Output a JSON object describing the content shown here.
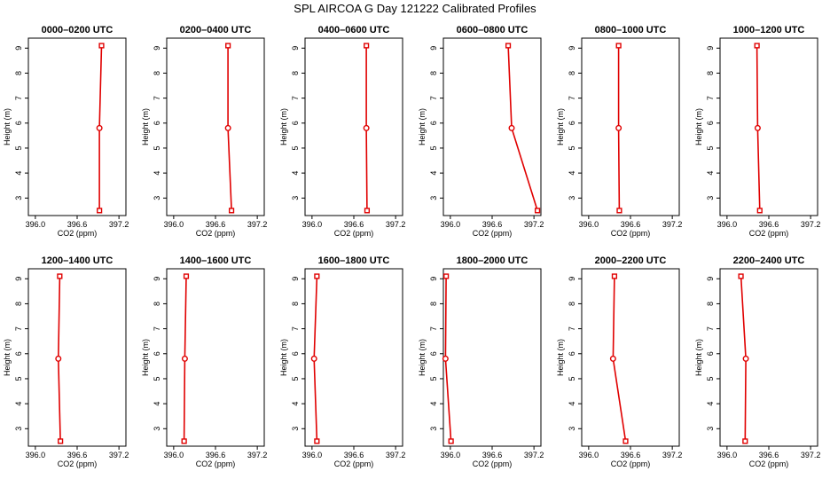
{
  "figure": {
    "title": "SPL AIRCOA G  Day 121222  Calibrated Profiles",
    "line_color": "#e00000",
    "marker_fill": "#ffffff"
  },
  "chart_data": [
    {
      "type": "line",
      "title": "0000–0200 UTC",
      "xlabel": "CO2 (ppm)",
      "ylabel": "Height (m)",
      "xlim": [
        395.9,
        397.3
      ],
      "ylim": [
        2.3,
        9.4
      ],
      "xticks": [
        "396.0",
        "396.6",
        "397.2"
      ],
      "yticks": [
        "3",
        "4",
        "5",
        "6",
        "7",
        "8",
        "9"
      ],
      "grid": false,
      "series": [
        {
          "x": [
            396.95,
            396.92,
            396.92
          ],
          "y": [
            9.1,
            5.8,
            2.5
          ]
        }
      ]
    },
    {
      "type": "line",
      "title": "0200–0400 UTC",
      "xlabel": "CO2 (ppm)",
      "ylabel": "Height (m)",
      "xlim": [
        395.9,
        397.3
      ],
      "ylim": [
        2.3,
        9.4
      ],
      "xticks": [
        "396.0",
        "396.6",
        "397.2"
      ],
      "yticks": [
        "3",
        "4",
        "5",
        "6",
        "7",
        "8",
        "9"
      ],
      "grid": false,
      "series": [
        {
          "x": [
            396.78,
            396.78,
            396.83
          ],
          "y": [
            9.1,
            5.8,
            2.5
          ]
        }
      ]
    },
    {
      "type": "line",
      "title": "0400–0600 UTC",
      "xlabel": "CO2 (ppm)",
      "ylabel": "Height (m)",
      "xlim": [
        395.9,
        397.3
      ],
      "ylim": [
        2.3,
        9.4
      ],
      "xticks": [
        "396.0",
        "396.6",
        "397.2"
      ],
      "yticks": [
        "3",
        "4",
        "5",
        "6",
        "7",
        "8",
        "9"
      ],
      "grid": false,
      "series": [
        {
          "x": [
            396.78,
            396.78,
            396.79
          ],
          "y": [
            9.1,
            5.8,
            2.5
          ]
        }
      ]
    },
    {
      "type": "line",
      "title": "0600–0800 UTC",
      "xlabel": "CO2 (ppm)",
      "ylabel": "Height (m)",
      "xlim": [
        395.9,
        397.3
      ],
      "ylim": [
        2.3,
        9.4
      ],
      "xticks": [
        "396.0",
        "396.6",
        "397.2"
      ],
      "yticks": [
        "3",
        "4",
        "5",
        "6",
        "7",
        "8",
        "9"
      ],
      "grid": false,
      "series": [
        {
          "x": [
            396.83,
            396.88,
            397.25
          ],
          "y": [
            9.1,
            5.8,
            2.5
          ]
        }
      ]
    },
    {
      "type": "line",
      "title": "0800–1000 UTC",
      "xlabel": "CO2 (ppm)",
      "ylabel": "Height (m)",
      "xlim": [
        395.9,
        397.3
      ],
      "ylim": [
        2.3,
        9.4
      ],
      "xticks": [
        "396.0",
        "396.6",
        "397.2"
      ],
      "yticks": [
        "3",
        "4",
        "5",
        "6",
        "7",
        "8",
        "9"
      ],
      "grid": false,
      "series": [
        {
          "x": [
            396.43,
            396.43,
            396.44
          ],
          "y": [
            9.1,
            5.8,
            2.5
          ]
        }
      ]
    },
    {
      "type": "line",
      "title": "1000–1200 UTC",
      "xlabel": "CO2 (ppm)",
      "ylabel": "Height (m)",
      "xlim": [
        395.9,
        397.3
      ],
      "ylim": [
        2.3,
        9.4
      ],
      "xticks": [
        "396.0",
        "396.6",
        "397.2"
      ],
      "yticks": [
        "3",
        "4",
        "5",
        "6",
        "7",
        "8",
        "9"
      ],
      "grid": false,
      "series": [
        {
          "x": [
            396.43,
            396.44,
            396.47
          ],
          "y": [
            9.1,
            5.8,
            2.5
          ]
        }
      ]
    },
    {
      "type": "line",
      "title": "1200–1400 UTC",
      "xlabel": "CO2 (ppm)",
      "ylabel": "Height (m)",
      "xlim": [
        395.9,
        397.3
      ],
      "ylim": [
        2.3,
        9.4
      ],
      "xticks": [
        "396.0",
        "396.6",
        "397.2"
      ],
      "yticks": [
        "3",
        "4",
        "5",
        "6",
        "7",
        "8",
        "9"
      ],
      "grid": false,
      "series": [
        {
          "x": [
            396.35,
            396.33,
            396.36
          ],
          "y": [
            9.1,
            5.8,
            2.5
          ]
        }
      ]
    },
    {
      "type": "line",
      "title": "1400–1600 UTC",
      "xlabel": "CO2 (ppm)",
      "ylabel": "Height (m)",
      "xlim": [
        395.9,
        397.3
      ],
      "ylim": [
        2.3,
        9.4
      ],
      "xticks": [
        "396.0",
        "396.6",
        "397.2"
      ],
      "yticks": [
        "3",
        "4",
        "5",
        "6",
        "7",
        "8",
        "9"
      ],
      "grid": false,
      "series": [
        {
          "x": [
            396.18,
            396.16,
            396.15
          ],
          "y": [
            9.1,
            5.8,
            2.5
          ]
        }
      ]
    },
    {
      "type": "line",
      "title": "1600–1800 UTC",
      "xlabel": "CO2 (ppm)",
      "ylabel": "Height (m)",
      "xlim": [
        395.9,
        397.3
      ],
      "ylim": [
        2.3,
        9.4
      ],
      "xticks": [
        "396.0",
        "396.6",
        "397.2"
      ],
      "yticks": [
        "3",
        "4",
        "5",
        "6",
        "7",
        "8",
        "9"
      ],
      "grid": false,
      "series": [
        {
          "x": [
            396.07,
            396.03,
            396.07
          ],
          "y": [
            9.1,
            5.8,
            2.5
          ]
        }
      ]
    },
    {
      "type": "line",
      "title": "1800–2000 UTC",
      "xlabel": "CO2 (ppm)",
      "ylabel": "Height (m)",
      "xlim": [
        395.9,
        397.3
      ],
      "ylim": [
        2.3,
        9.4
      ],
      "xticks": [
        "396.0",
        "396.6",
        "397.2"
      ],
      "yticks": [
        "3",
        "4",
        "5",
        "6",
        "7",
        "8",
        "9"
      ],
      "grid": false,
      "series": [
        {
          "x": [
            395.94,
            395.93,
            396.01
          ],
          "y": [
            9.1,
            5.8,
            2.5
          ]
        }
      ]
    },
    {
      "type": "line",
      "title": "2000–2200 UTC",
      "xlabel": "CO2 (ppm)",
      "ylabel": "Height (m)",
      "xlim": [
        395.9,
        397.3
      ],
      "ylim": [
        2.3,
        9.4
      ],
      "xticks": [
        "396.0",
        "396.6",
        "397.2"
      ],
      "yticks": [
        "3",
        "4",
        "5",
        "6",
        "7",
        "8",
        "9"
      ],
      "grid": false,
      "series": [
        {
          "x": [
            396.37,
            396.35,
            396.53
          ],
          "y": [
            9.1,
            5.8,
            2.5
          ]
        }
      ]
    },
    {
      "type": "line",
      "title": "2200–2400 UTC",
      "xlabel": "CO2 (ppm)",
      "ylabel": "Height (m)",
      "xlim": [
        395.9,
        397.3
      ],
      "ylim": [
        2.3,
        9.4
      ],
      "xticks": [
        "396.0",
        "396.6",
        "397.2"
      ],
      "yticks": [
        "3",
        "4",
        "5",
        "6",
        "7",
        "8",
        "9"
      ],
      "grid": false,
      "series": [
        {
          "x": [
            396.2,
            396.27,
            396.26
          ],
          "y": [
            9.1,
            5.8,
            2.5
          ]
        }
      ]
    }
  ]
}
